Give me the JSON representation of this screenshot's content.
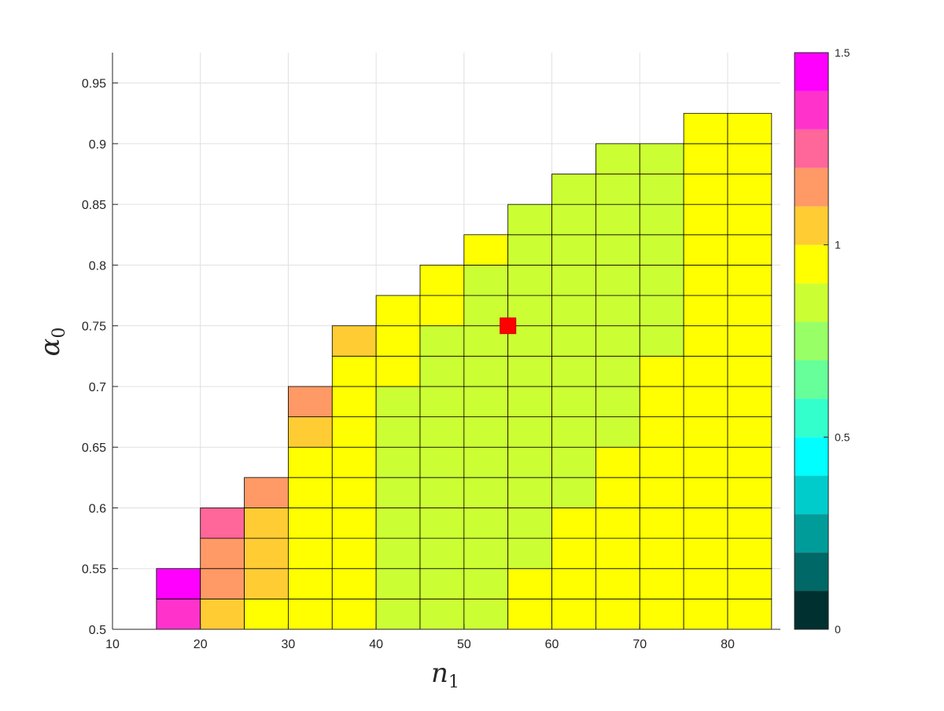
{
  "chart_data": {
    "type": "heatmap",
    "xlabel": "n",
    "xlabel_sub": "1",
    "ylabel": "α",
    "ylabel_sub": "0",
    "xlim": [
      10,
      86
    ],
    "ylim": [
      0.5,
      0.975
    ],
    "xticks": [
      10,
      20,
      30,
      40,
      50,
      60,
      70,
      80
    ],
    "yticks": [
      0.5,
      0.55,
      0.6,
      0.65,
      0.7,
      0.75,
      0.8,
      0.85,
      0.9,
      0.95
    ],
    "ytick_labels": [
      "0.5",
      "0.55",
      "0.6",
      "0.65",
      "0.7",
      "0.75",
      "0.8",
      "0.85",
      "0.9",
      "0.95"
    ],
    "grid": true,
    "cell_width": 5,
    "cell_height": 0.025,
    "x_centers": [
      17.5,
      22.5,
      27.5,
      32.5,
      37.5,
      42.5,
      47.5,
      52.5,
      57.5,
      62.5,
      67.5,
      72.5,
      77.5,
      82.5
    ],
    "y_centers": [
      0.5125,
      0.5375,
      0.5625,
      0.5875,
      0.6125,
      0.6375,
      0.6625,
      0.6875,
      0.7125,
      0.7375,
      0.7625,
      0.7875,
      0.8125,
      0.8375,
      0.8625,
      0.8875,
      0.9125
    ],
    "values": [
      [
        1.35,
        1.45,
        null,
        null,
        null,
        null,
        null,
        null,
        null,
        null,
        null,
        null,
        null,
        null,
        null,
        null,
        null
      ],
      [
        1.05,
        1.15,
        1.15,
        1.25,
        null,
        null,
        null,
        null,
        null,
        null,
        null,
        null,
        null,
        null,
        null,
        null,
        null
      ],
      [
        0.95,
        1.05,
        1.05,
        1.05,
        1.15,
        null,
        null,
        null,
        null,
        null,
        null,
        null,
        null,
        null,
        null,
        null,
        null
      ],
      [
        0.95,
        0.95,
        0.95,
        0.95,
        0.95,
        0.95,
        1.05,
        1.15,
        null,
        null,
        null,
        null,
        null,
        null,
        null,
        null,
        null
      ],
      [
        0.95,
        0.95,
        0.95,
        0.95,
        0.95,
        0.95,
        0.95,
        0.95,
        0.95,
        1.05,
        null,
        null,
        null,
        null,
        null,
        null,
        null
      ],
      [
        0.85,
        0.85,
        0.85,
        0.85,
        0.85,
        0.85,
        0.85,
        0.85,
        0.95,
        0.95,
        0.95,
        null,
        null,
        null,
        null,
        null,
        null
      ],
      [
        0.85,
        0.85,
        0.85,
        0.85,
        0.85,
        0.85,
        0.85,
        0.85,
        0.85,
        0.85,
        0.95,
        0.95,
        null,
        null,
        null,
        null,
        null
      ],
      [
        0.85,
        0.85,
        0.85,
        0.85,
        0.85,
        0.85,
        0.85,
        0.85,
        0.85,
        0.85,
        0.85,
        0.85,
        0.95,
        null,
        null,
        null,
        null
      ],
      [
        0.95,
        0.95,
        0.85,
        0.85,
        0.85,
        0.85,
        0.85,
        0.85,
        0.85,
        0.85,
        0.85,
        0.85,
        0.85,
        0.85,
        null,
        null,
        null
      ],
      [
        0.95,
        0.95,
        0.95,
        0.95,
        0.85,
        0.85,
        0.85,
        0.85,
        0.85,
        0.85,
        0.85,
        0.85,
        0.85,
        0.85,
        0.85,
        null,
        null
      ],
      [
        0.95,
        0.95,
        0.95,
        0.95,
        0.95,
        0.95,
        0.85,
        0.85,
        0.85,
        0.85,
        0.85,
        0.85,
        0.85,
        0.85,
        0.85,
        0.85,
        null
      ],
      [
        0.95,
        0.95,
        0.95,
        0.95,
        0.95,
        0.95,
        0.95,
        0.95,
        0.95,
        0.85,
        0.85,
        0.85,
        0.85,
        0.85,
        0.85,
        0.85,
        null
      ],
      [
        0.95,
        0.95,
        0.95,
        0.95,
        0.95,
        0.95,
        0.95,
        0.95,
        0.95,
        0.95,
        0.95,
        0.95,
        0.95,
        0.95,
        0.95,
        0.95,
        0.95
      ],
      [
        0.95,
        0.95,
        0.95,
        0.95,
        0.95,
        0.95,
        0.95,
        0.95,
        0.95,
        0.95,
        0.95,
        0.95,
        0.95,
        0.95,
        0.95,
        0.95,
        0.95
      ]
    ],
    "marker": {
      "x": 55,
      "y": 0.75,
      "color": "#ff0000",
      "shape": "square"
    },
    "colorbar": {
      "min": 0,
      "max": 1.5,
      "ticks": [
        0,
        0.5,
        1,
        1.5
      ],
      "tick_labels": [
        "0",
        "0.5",
        "1",
        "1.5"
      ],
      "levels": 15,
      "colors": [
        "#00302f",
        "#006866",
        "#009c99",
        "#00cccc",
        "#00ffff",
        "#33ffcc",
        "#66ff99",
        "#99ff66",
        "#ccff33",
        "#ffff00",
        "#ffcc33",
        "#ff9966",
        "#ff6699",
        "#ff33cc",
        "#ff00ff"
      ]
    }
  }
}
